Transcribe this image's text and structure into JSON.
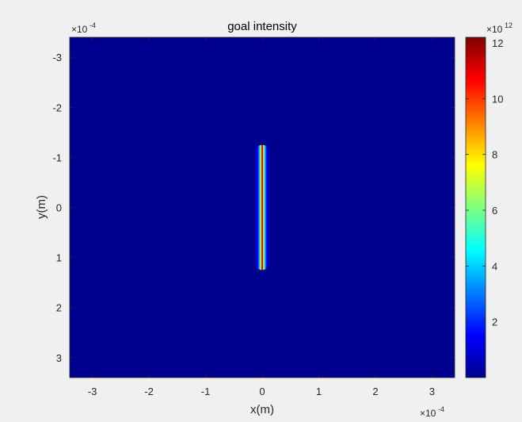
{
  "chart_data": {
    "type": "heatmap",
    "title": "goal intensity",
    "xlabel": "x(m)",
    "ylabel": "y(m)",
    "x_exponent": {
      "base": "×10",
      "power": "-4"
    },
    "y_exponent": {
      "base": "×10",
      "power": "-4"
    },
    "colorbar_exponent": {
      "base": "×10",
      "power": "12"
    },
    "xlim": [
      -3.4,
      3.4
    ],
    "ylim": [
      3.4,
      -3.4
    ],
    "y_reversed": true,
    "x_ticks": [
      -3,
      -2,
      -1,
      0,
      1,
      2,
      3
    ],
    "x_tick_labels": [
      "-3",
      "-2",
      "-1",
      "0",
      "1",
      "2",
      "3"
    ],
    "y_ticks": [
      -3,
      -2,
      -1,
      0,
      1,
      2,
      3
    ],
    "y_tick_labels": [
      "-3",
      "-2",
      "-1",
      "0",
      "1",
      "2",
      "3"
    ],
    "colorbar_range": [
      0,
      12.2
    ],
    "colorbar_ticks": [
      2,
      4,
      6,
      8,
      10,
      12
    ],
    "colorbar_tick_labels": [
      "2",
      "4",
      "6",
      "8",
      "10",
      "12"
    ],
    "colormap": "jet",
    "background_value": 0,
    "feature": {
      "shape": "vertical line",
      "x_center": 0,
      "y_range": [
        -1.25,
        1.25
      ],
      "x_halfwidth": 0.14,
      "peak_value": 12
    }
  }
}
